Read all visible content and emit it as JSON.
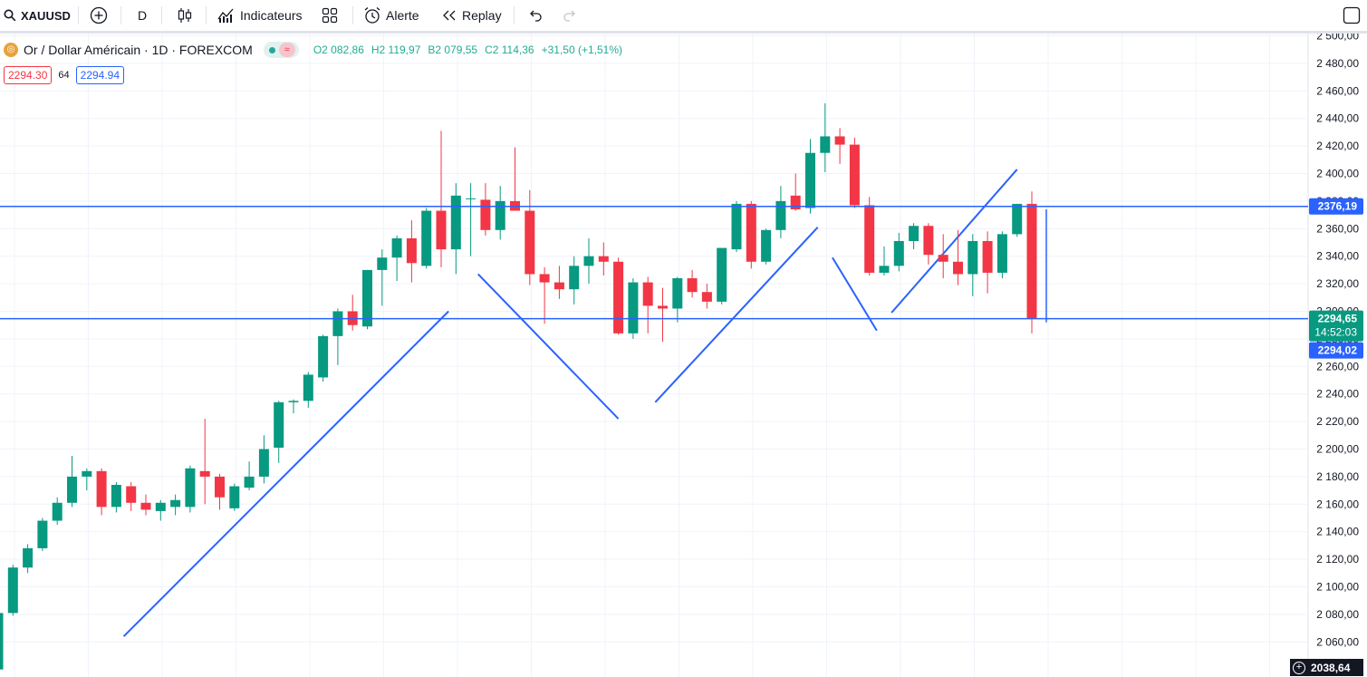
{
  "toolbar": {
    "symbol": "XAUUSD",
    "interval": "D",
    "indicators_label": "Indicateurs",
    "alert_label": "Alerte",
    "replay_label": "Replay"
  },
  "legend": {
    "title": "Or / Dollar Américain · 1D · FOREXCOM",
    "open": "O2 082,86",
    "high": "H2 119,97",
    "low": "B2 079,55",
    "close": "C2 114,36",
    "change": "+31,50 (+1,51%)"
  },
  "quote": {
    "bid": "2294.30",
    "spread": "64",
    "ask": "2294.94"
  },
  "corner_price": "2038,64",
  "colors": {
    "up": "#089981",
    "down": "#f23645",
    "line": "#2962ff"
  },
  "chart_data": {
    "type": "candlestick",
    "y_axis_ticks": [
      "2 500,00",
      "2 480,00",
      "2 460,00",
      "2 440,00",
      "2 420,00",
      "2 400,00",
      "2 380,00",
      "2 360,00",
      "2 340,00",
      "2 320,00",
      "2 300,00",
      "2 280,00",
      "2 260,00",
      "2 240,00",
      "2 220,00",
      "2 200,00",
      "2 180,00",
      "2 160,00",
      "2 140,00",
      "2 120,00",
      "2 100,00",
      "2 080,00",
      "2 060,00"
    ],
    "ylim": [
      2036,
      2507
    ],
    "grid": true,
    "candles": [
      [
        2040,
        2083,
        2035,
        2081
      ],
      [
        2081,
        2116,
        2079,
        2114
      ],
      [
        2114,
        2131,
        2110,
        2128
      ],
      [
        2128,
        2150,
        2126,
        2148
      ],
      [
        2148,
        2165,
        2145,
        2161
      ],
      [
        2161,
        2195,
        2158,
        2180
      ],
      [
        2180,
        2186,
        2170,
        2184
      ],
      [
        2184,
        2186,
        2152,
        2158
      ],
      [
        2158,
        2176,
        2154,
        2174
      ],
      [
        2173,
        2176,
        2155,
        2161
      ],
      [
        2161,
        2167,
        2152,
        2156
      ],
      [
        2155,
        2163,
        2148,
        2161
      ],
      [
        2158,
        2167,
        2152,
        2163
      ],
      [
        2158,
        2188,
        2154,
        2186
      ],
      [
        2184,
        2222,
        2160,
        2180
      ],
      [
        2180,
        2182,
        2156,
        2165
      ],
      [
        2157,
        2175,
        2155,
        2173
      ],
      [
        2172,
        2191,
        2170,
        2180
      ],
      [
        2180,
        2210,
        2175,
        2200
      ],
      [
        2201,
        2235,
        2190,
        2234
      ],
      [
        2234,
        2236,
        2226,
        2235
      ],
      [
        2235,
        2256,
        2230,
        2254
      ],
      [
        2252,
        2283,
        2249,
        2282
      ],
      [
        2282,
        2302,
        2261,
        2300
      ],
      [
        2300,
        2312,
        2286,
        2290
      ],
      [
        2289,
        2330,
        2287,
        2330
      ],
      [
        2330,
        2345,
        2304,
        2339
      ],
      [
        2339,
        2355,
        2322,
        2353
      ],
      [
        2353,
        2366,
        2321,
        2335
      ],
      [
        2333,
        2375,
        2331,
        2373
      ],
      [
        2373,
        2431,
        2332,
        2345
      ],
      [
        2345,
        2393,
        2327,
        2384
      ],
      [
        2382,
        2393,
        2340,
        2382
      ],
      [
        2381,
        2393,
        2355,
        2359
      ],
      [
        2359,
        2391,
        2352,
        2380
      ],
      [
        2380,
        2419,
        2375,
        2373
      ],
      [
        2373,
        2388,
        2319,
        2327
      ],
      [
        2327,
        2332,
        2291,
        2321
      ],
      [
        2321,
        2333,
        2309,
        2316
      ],
      [
        2316,
        2340,
        2305,
        2333
      ],
      [
        2333,
        2353,
        2320,
        2340
      ],
      [
        2340,
        2350,
        2326,
        2336
      ],
      [
        2336,
        2339,
        2283,
        2284
      ],
      [
        2284,
        2324,
        2280,
        2321
      ],
      [
        2321,
        2325,
        2284,
        2304
      ],
      [
        2304,
        2317,
        2278,
        2302
      ],
      [
        2302,
        2325,
        2292,
        2324
      ],
      [
        2324,
        2330,
        2310,
        2314
      ],
      [
        2314,
        2320,
        2302,
        2307
      ],
      [
        2307,
        2346,
        2305,
        2346
      ],
      [
        2345,
        2380,
        2343,
        2378
      ],
      [
        2378,
        2380,
        2331,
        2336
      ],
      [
        2336,
        2360,
        2334,
        2359
      ],
      [
        2359,
        2391,
        2353,
        2380
      ],
      [
        2384,
        2400,
        2373,
        2374
      ],
      [
        2375,
        2425,
        2371,
        2415
      ],
      [
        2415,
        2451,
        2401,
        2427
      ],
      [
        2427,
        2433,
        2407,
        2421
      ],
      [
        2421,
        2426,
        2375,
        2377
      ],
      [
        2377,
        2383,
        2326,
        2328
      ],
      [
        2328,
        2347,
        2326,
        2333
      ],
      [
        2333,
        2357,
        2329,
        2351
      ],
      [
        2351,
        2364,
        2345,
        2362
      ],
      [
        2362,
        2364,
        2334,
        2341
      ],
      [
        2341,
        2356,
        2324,
        2336
      ],
      [
        2336,
        2359,
        2319,
        2327
      ],
      [
        2327,
        2356,
        2311,
        2351
      ],
      [
        2351,
        2358,
        2313,
        2328
      ],
      [
        2328,
        2358,
        2324,
        2356
      ],
      [
        2356,
        2378,
        2354,
        2378
      ],
      [
        2378,
        2387,
        2284,
        2295
      ]
    ],
    "levels": [
      {
        "price": 2376.19,
        "label": "2376,19"
      },
      {
        "price": 2294.65,
        "label": "2294,65"
      }
    ],
    "price_labels": [
      {
        "price": 2376.19,
        "text": "2376,19"
      },
      {
        "price": 2294.65,
        "text": "2294,65"
      },
      {
        "price": 2294.02,
        "text": "2294,02"
      }
    ],
    "countdown": "14:52:03",
    "trend_lines": [
      [
        [
          8.5,
          2064
        ],
        [
          30.5,
          2300
        ]
      ],
      [
        [
          32.5,
          2327
        ],
        [
          42,
          2222
        ]
      ],
      [
        [
          44.5,
          2234
        ],
        [
          55.5,
          2361
        ]
      ],
      [
        [
          56.5,
          2339
        ],
        [
          59.5,
          2286
        ]
      ],
      [
        [
          60.5,
          2299
        ],
        [
          69,
          2403
        ]
      ]
    ]
  }
}
